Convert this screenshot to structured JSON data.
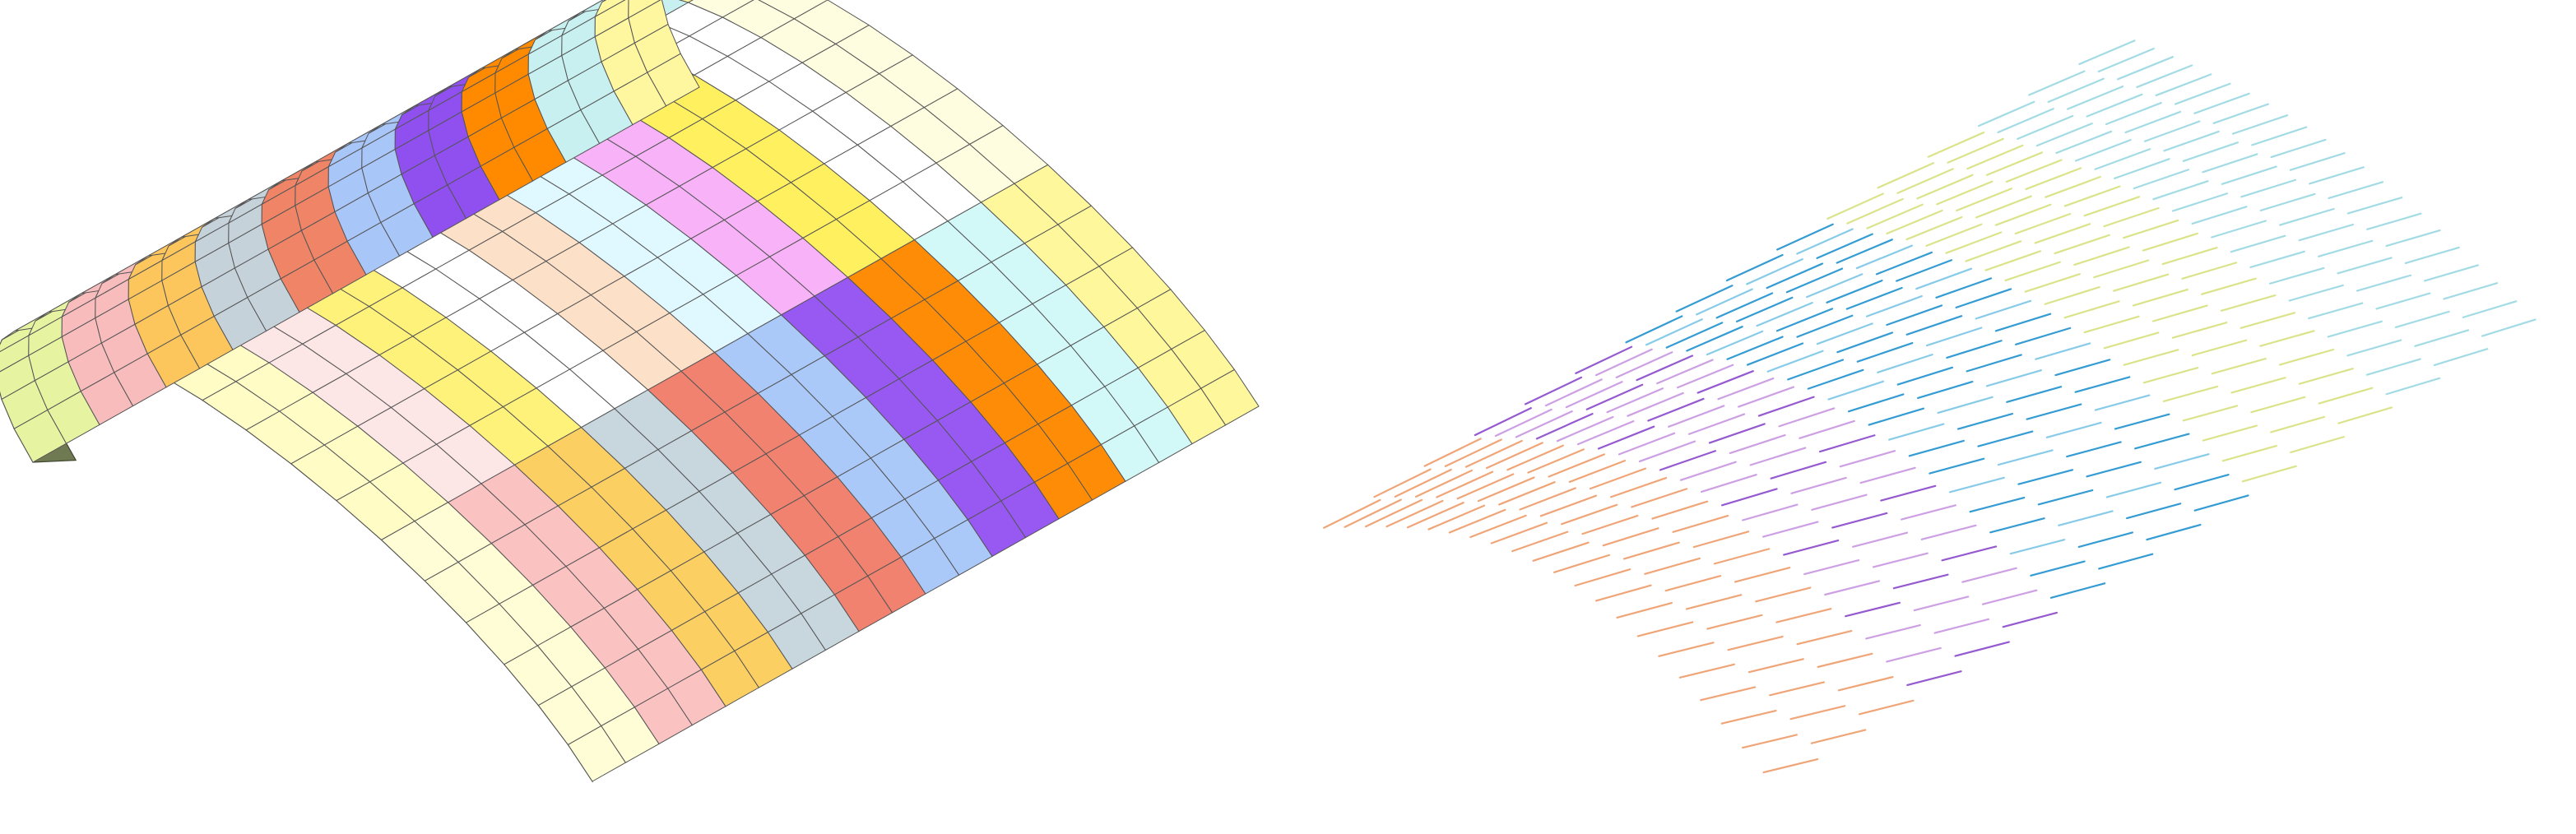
{
  "vault": {
    "band_colors": [
      [
        "#e6f4a2",
        "#fffcc6",
        "#fffdd6"
      ],
      [
        "#f8bcbc",
        "#fde6e6",
        "#fbc2c2"
      ],
      [
        "#fcc65c",
        "#fff27a",
        "#fccf62"
      ],
      [
        "#c6d2da",
        "#ffffff",
        "#c8d6de"
      ],
      [
        "#f08466",
        "#fde0c8",
        "#f28270"
      ],
      [
        "#a8c6f8",
        "#e0f8ff",
        "#aac8f8"
      ],
      [
        "#9050f0",
        "#f8b2f8",
        "#9858f2"
      ],
      [
        "#ff8a00",
        "#fff060",
        "#ff8c06"
      ],
      [
        "#c8f0f0",
        "#ffffff",
        "#d2f8f8"
      ],
      [
        "#fff6a0",
        "#fffde0",
        "#fff79c"
      ]
    ],
    "edge_color": "#6f7a52"
  },
  "line_field": {
    "colors": [
      "#ee9c6a",
      "#8a48cc",
      "#c896e0",
      "#1f92cf",
      "#7cc6e6",
      "#d8e07e",
      "#9ad8e2"
    ]
  }
}
